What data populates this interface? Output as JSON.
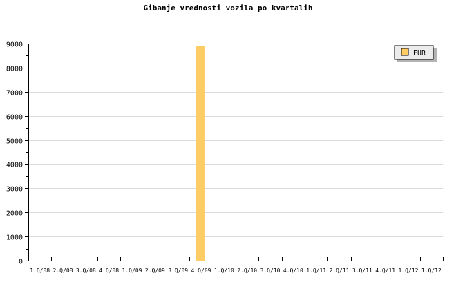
{
  "chart_data": {
    "type": "bar",
    "title": "Gibanje vrednosti vozila po kvartalih",
    "xlabel": "",
    "ylabel": "",
    "ylim": [
      0,
      9000
    ],
    "yticks": [
      0,
      1000,
      2000,
      3000,
      4000,
      5000,
      6000,
      7000,
      8000,
      9000
    ],
    "grid": true,
    "legend_position": "top-right",
    "categories": [
      "1.Q/08",
      "2.Q/08",
      "3.Q/08",
      "4.Q/08",
      "1.Q/09",
      "2.Q/09",
      "3.Q/09",
      "4.Q/09",
      "1.Q/10",
      "2.Q/10",
      "3.Q/10",
      "4.Q/10",
      "1.Q/11",
      "2.Q/11",
      "3.Q/11",
      "4.Q/11",
      "1.Q/12",
      "1.Q/12"
    ],
    "series": [
      {
        "name": "EUR",
        "color": "#ffcc66",
        "values": [
          0,
          0,
          0,
          0,
          0,
          0,
          0,
          8920,
          0,
          0,
          0,
          0,
          0,
          0,
          0,
          0,
          0,
          0
        ]
      }
    ]
  }
}
